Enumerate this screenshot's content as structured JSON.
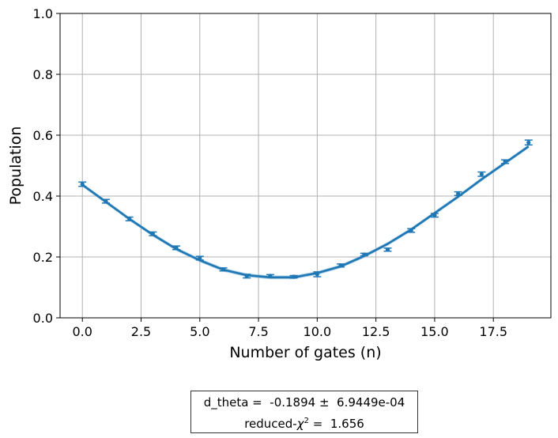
{
  "chart_data": {
    "type": "scatter",
    "xlabel": "Number of gates (n)",
    "ylabel": "Population",
    "xlim": [
      -0.95,
      19.95
    ],
    "ylim": [
      0.0,
      1.0
    ],
    "x_ticks": [
      0.0,
      2.5,
      5.0,
      7.5,
      10.0,
      12.5,
      15.0,
      17.5
    ],
    "x_tick_labels": [
      "0.0",
      "2.5",
      "5.0",
      "7.5",
      "10.0",
      "12.5",
      "15.0",
      "17.5"
    ],
    "y_ticks": [
      0.0,
      0.2,
      0.4,
      0.6,
      0.8,
      1.0
    ],
    "y_tick_labels": [
      "0.0",
      "0.2",
      "0.4",
      "0.6",
      "0.8",
      "1.0"
    ],
    "grid": true,
    "color": "#1f77b4",
    "band_color": "#8fbfe0",
    "series": [
      {
        "kind": "data_with_errorbars",
        "x": [
          0,
          1,
          2,
          3,
          4,
          5,
          6,
          7,
          8,
          9,
          10,
          11,
          12,
          13,
          14,
          15,
          16,
          17,
          18,
          19
        ],
        "y": [
          0.439,
          0.383,
          0.325,
          0.276,
          0.23,
          0.196,
          0.159,
          0.137,
          0.138,
          0.135,
          0.143,
          0.172,
          0.208,
          0.224,
          0.287,
          0.337,
          0.408,
          0.472,
          0.513,
          0.576
        ],
        "err": [
          0.007,
          0.006,
          0.006,
          0.006,
          0.006,
          0.006,
          0.005,
          0.006,
          0.004,
          0.004,
          0.008,
          0.005,
          0.004,
          0.005,
          0.006,
          0.006,
          0.006,
          0.007,
          0.006,
          0.008
        ]
      },
      {
        "kind": "fit",
        "x": [
          0,
          1,
          2,
          3,
          4,
          5,
          6,
          7,
          8,
          9,
          10,
          11,
          12,
          13,
          14,
          15,
          16,
          17,
          18,
          19
        ],
        "y": [
          0.437,
          0.381,
          0.325,
          0.273,
          0.226,
          0.189,
          0.158,
          0.14,
          0.133,
          0.133,
          0.147,
          0.169,
          0.203,
          0.243,
          0.29,
          0.344,
          0.398,
          0.455,
          0.509,
          0.563
        ],
        "band_halfwidth": 0.006
      }
    ],
    "fit_box": {
      "line1": "d_theta =  -0.1894 ±  6.9449e-04",
      "line2_prefix": "reduced-",
      "line2_symbol": "χ",
      "line2_sup": "2",
      "line2_suffix": " =  1.656"
    }
  }
}
